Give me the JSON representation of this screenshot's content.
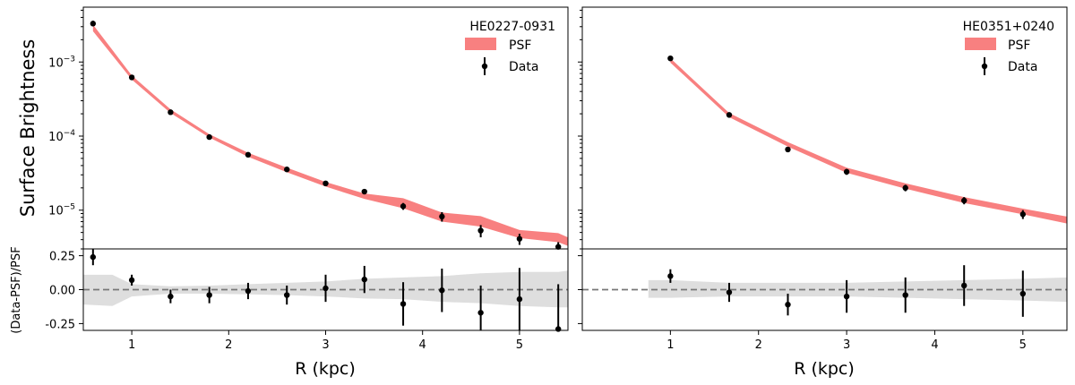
{
  "figure": {
    "ylabel_top": "Surface Brightness",
    "ylabel_bottom": "(Data-PSF)/PSF",
    "legend_psf": "PSF",
    "legend_data": "Data"
  },
  "chart_data": [
    {
      "type": "scatter",
      "id": "left",
      "title": "HE0227-0931",
      "xlabel": "R (kpc)",
      "xlim": [
        0.5,
        5.5
      ],
      "xticks": [
        1,
        2,
        3,
        4,
        5
      ],
      "top": {
        "yscale": "log",
        "ylim": [
          3e-06,
          0.0055
        ],
        "ytick_labels": [
          "10^-3",
          "10^-4",
          "10^-5"
        ],
        "psf_band": {
          "x": [
            0.6,
            1.0,
            1.4,
            1.8,
            2.2,
            2.6,
            3.0,
            3.4,
            3.8,
            4.2,
            4.6,
            5.0,
            5.4,
            5.5
          ],
          "low": [
            0.0026,
            0.00058,
            0.000205,
            9.55e-05,
            5.25e-05,
            3.25e-05,
            2.08e-05,
            1.42e-05,
            1.06e-05,
            7e-06,
            6e-06,
            4.2e-06,
            3.7e-06,
            3.3e-06
          ],
          "high": [
            0.0032,
            0.00066,
            0.00023,
            0.000106,
            5.95e-05,
            3.75e-05,
            2.4e-05,
            1.68e-05,
            1.45e-05,
            9.3e-06,
            8.3e-06,
            5.4e-06,
            4.9e-06,
            4.3e-06
          ]
        },
        "data": {
          "x": [
            0.6,
            1.0,
            1.4,
            1.8,
            2.2,
            2.6,
            3.0,
            3.4,
            3.8,
            4.2,
            4.6,
            5.0,
            5.4
          ],
          "y": [
            0.0033,
            0.00062,
            0.00021,
            9.7e-05,
            5.6e-05,
            3.55e-05,
            2.3e-05,
            1.78e-05,
            1.13e-05,
            8.2e-06,
            5.3e-06,
            4.1e-06,
            3.2e-06
          ],
          "err_lo": [
            0.00025,
            2e-05,
            7e-06,
            3e-06,
            1.8e-06,
            1.2e-06,
            1.2e-06,
            1.2e-06,
            1.2e-06,
            1.2e-06,
            1e-06,
            7e-07,
            5e-07
          ],
          "err_hi": [
            0.0003,
            2e-05,
            7e-06,
            3e-06,
            1.8e-06,
            1.2e-06,
            1.2e-06,
            1.2e-06,
            1.2e-06,
            1.2e-06,
            1e-06,
            7e-07,
            5e-07
          ]
        }
      },
      "bottom": {
        "ylim": [
          -0.3,
          0.3
        ],
        "yticks": [
          0.25,
          0.0,
          -0.25
        ],
        "ytick_labels": [
          "0.25",
          "0.00",
          "-0.25"
        ],
        "band": {
          "x": [
            0.5,
            0.8,
            1.0,
            1.4,
            1.8,
            2.2,
            2.6,
            3.0,
            3.4,
            3.8,
            4.2,
            4.6,
            5.0,
            5.4,
            5.5
          ],
          "low": [
            -0.11,
            -0.12,
            -0.05,
            -0.03,
            -0.03,
            -0.035,
            -0.04,
            -0.05,
            -0.065,
            -0.07,
            -0.09,
            -0.1,
            -0.12,
            -0.13,
            -0.13
          ],
          "high": [
            0.11,
            0.11,
            0.04,
            0.025,
            0.03,
            0.04,
            0.05,
            0.06,
            0.08,
            0.09,
            0.1,
            0.12,
            0.13,
            0.13,
            0.14
          ]
        },
        "data": {
          "x": [
            0.6,
            1.0,
            1.4,
            1.8,
            2.2,
            2.6,
            3.0,
            3.4,
            3.8,
            4.2,
            4.6,
            5.0,
            5.4
          ],
          "y": [
            0.24,
            0.07,
            -0.05,
            -0.04,
            -0.01,
            -0.04,
            0.01,
            0.075,
            -0.105,
            -0.005,
            -0.17,
            -0.07,
            -0.29
          ],
          "err": [
            0.06,
            0.04,
            0.05,
            0.06,
            0.06,
            0.07,
            0.1,
            0.1,
            0.16,
            0.16,
            0.2,
            0.23,
            0.33
          ]
        }
      }
    },
    {
      "type": "scatter",
      "id": "right",
      "title": "HE0351+0240",
      "xlabel": "R (kpc)",
      "xlim": [
        0.0,
        5.5
      ],
      "xticks": [
        1,
        2,
        3,
        4,
        5
      ],
      "top": {
        "yscale": "log",
        "ylim": [
          3e-06,
          0.0055
        ],
        "ytick_labels": [],
        "psf_band": {
          "x": [
            1.0,
            1.667,
            2.333,
            3.0,
            3.667,
            4.333,
            5.0,
            5.5
          ],
          "low": [
            0.00098,
            0.00018,
            7.2e-05,
            3.2e-05,
            1.95e-05,
            1.25e-05,
            8.8e-06,
            6.6e-06
          ],
          "high": [
            0.00112,
            0.000205,
            8.3e-05,
            3.75e-05,
            2.3e-05,
            1.5e-05,
            1.05e-05,
            8.2e-06
          ]
        },
        "data": {
          "x": [
            1.0,
            1.667,
            2.333,
            3.0,
            3.667,
            4.333,
            5.0
          ],
          "y": [
            0.00112,
            0.000193,
            6.6e-05,
            3.3e-05,
            2e-05,
            1.35e-05,
            8.8e-06
          ],
          "err_lo": [
            5e-05,
            8e-06,
            5e-06,
            3e-06,
            2e-06,
            1.5e-06,
            1.2e-06
          ],
          "err_hi": [
            5e-05,
            8e-06,
            5e-06,
            3e-06,
            2e-06,
            1.5e-06,
            1.2e-06
          ]
        }
      },
      "bottom": {
        "ylim": [
          -0.3,
          0.3
        ],
        "yticks": [
          0.25,
          0.0,
          -0.25
        ],
        "ytick_labels": [],
        "band": {
          "x": [
            0.75,
            1.0,
            1.667,
            2.333,
            3.0,
            3.667,
            4.333,
            5.0,
            5.5
          ],
          "low": [
            -0.06,
            -0.06,
            -0.05,
            -0.05,
            -0.05,
            -0.06,
            -0.07,
            -0.08,
            -0.09
          ],
          "high": [
            0.07,
            0.07,
            0.05,
            0.05,
            0.05,
            0.06,
            0.07,
            0.08,
            0.09
          ]
        },
        "data": {
          "x": [
            1.0,
            1.667,
            2.333,
            3.0,
            3.667,
            4.333,
            5.0
          ],
          "y": [
            0.1,
            -0.02,
            -0.11,
            -0.05,
            -0.04,
            0.03,
            -0.03
          ],
          "err": [
            0.05,
            0.07,
            0.08,
            0.12,
            0.13,
            0.15,
            0.17
          ]
        }
      }
    }
  ]
}
